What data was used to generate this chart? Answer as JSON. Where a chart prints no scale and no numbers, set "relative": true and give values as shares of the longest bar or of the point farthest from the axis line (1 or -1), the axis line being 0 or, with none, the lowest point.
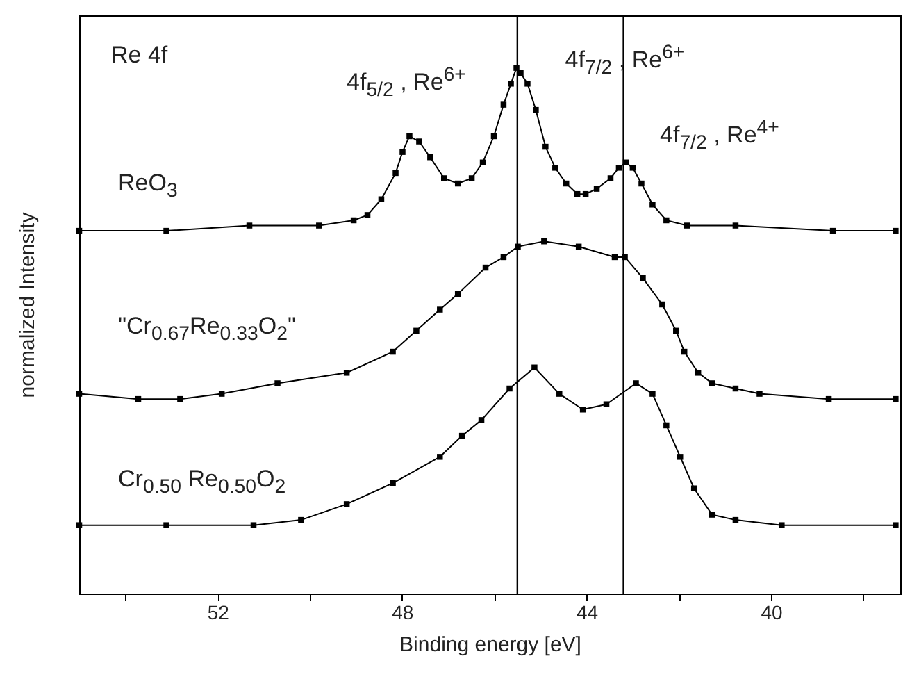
{
  "chart_data": {
    "type": "line",
    "relative": true,
    "xlabel": "Binding energy [eV]",
    "ylabel": "normalized Intensity",
    "xlim": [
      55,
      37.2
    ],
    "xticks": [
      {
        "value": 54,
        "label": null
      },
      52,
      {
        "value": 50,
        "label": null
      },
      48,
      {
        "value": 46,
        "label": null
      },
      44,
      {
        "value": 42,
        "label": null
      },
      40,
      {
        "value": 38,
        "label": null
      }
    ],
    "marker": "square",
    "line_style": "solid",
    "series": [
      {
        "name": "ReO$_{3}$",
        "color": "#000000",
        "x": [
          55.0,
          53.11,
          51.31,
          49.8,
          49.05,
          48.75,
          48.45,
          48.14,
          47.99,
          47.84,
          47.63,
          47.39,
          47.09,
          46.79,
          46.49,
          46.25,
          46.01,
          45.8,
          45.64,
          45.52,
          45.43,
          45.28,
          45.1,
          44.89,
          44.68,
          44.44,
          44.2,
          44.02,
          43.78,
          43.48,
          43.3,
          43.15,
          43.0,
          42.81,
          42.57,
          42.27,
          41.82,
          40.77,
          38.66,
          37.3
        ],
        "values": [
          0.69,
          0.69,
          0.7,
          0.7,
          0.71,
          0.72,
          0.75,
          0.8,
          0.84,
          0.87,
          0.86,
          0.83,
          0.79,
          0.78,
          0.79,
          0.82,
          0.87,
          0.93,
          0.97,
          1.0,
          0.99,
          0.97,
          0.92,
          0.85,
          0.81,
          0.78,
          0.76,
          0.76,
          0.77,
          0.79,
          0.81,
          0.82,
          0.81,
          0.78,
          0.74,
          0.71,
          0.7,
          0.7,
          0.69,
          0.69
        ]
      },
      {
        "name": "\"Cr$_{0.67}$Re$_{0.33}$O$_{2}$\"",
        "color": "#000000",
        "x": [
          55.0,
          53.72,
          52.81,
          51.91,
          50.7,
          49.2,
          48.2,
          47.69,
          47.18,
          46.79,
          46.19,
          45.8,
          45.49,
          44.92,
          44.17,
          43.39,
          43.17,
          42.78,
          42.36,
          42.06,
          41.88,
          41.58,
          41.28,
          40.77,
          40.25,
          38.75,
          37.3
        ],
        "values": [
          0.38,
          0.37,
          0.37,
          0.38,
          0.4,
          0.42,
          0.46,
          0.5,
          0.54,
          0.57,
          0.62,
          0.64,
          0.66,
          0.67,
          0.66,
          0.64,
          0.64,
          0.6,
          0.55,
          0.5,
          0.46,
          0.42,
          0.4,
          0.39,
          0.38,
          0.37,
          0.37
        ]
      },
      {
        "name": "Cr$_{0.50}$ Re$_{0.50}$O$_{2}$",
        "color": "#000000",
        "x": [
          55.0,
          53.11,
          51.22,
          50.19,
          49.2,
          48.2,
          47.18,
          46.7,
          46.28,
          45.67,
          45.13,
          44.59,
          44.08,
          43.57,
          42.93,
          42.57,
          42.27,
          41.97,
          41.67,
          41.28,
          40.77,
          39.77,
          37.3
        ],
        "values": [
          0.13,
          0.13,
          0.13,
          0.14,
          0.17,
          0.21,
          0.26,
          0.3,
          0.33,
          0.39,
          0.43,
          0.38,
          0.35,
          0.36,
          0.4,
          0.38,
          0.32,
          0.26,
          0.2,
          0.15,
          0.14,
          0.13,
          0.13
        ]
      }
    ],
    "ref_lines": [
      {
        "axis": "x",
        "value": 45.5,
        "label": "4f$_{5/2}$ , Re$^{6+}$"
      },
      {
        "axis": "x",
        "value": 43.2,
        "label": "4f$_{7/2}$ , Re$^{6+}$"
      }
    ],
    "annotations": [
      "Re 4f",
      "4f$_{7/2}$ , Re$^{4+}$"
    ]
  }
}
